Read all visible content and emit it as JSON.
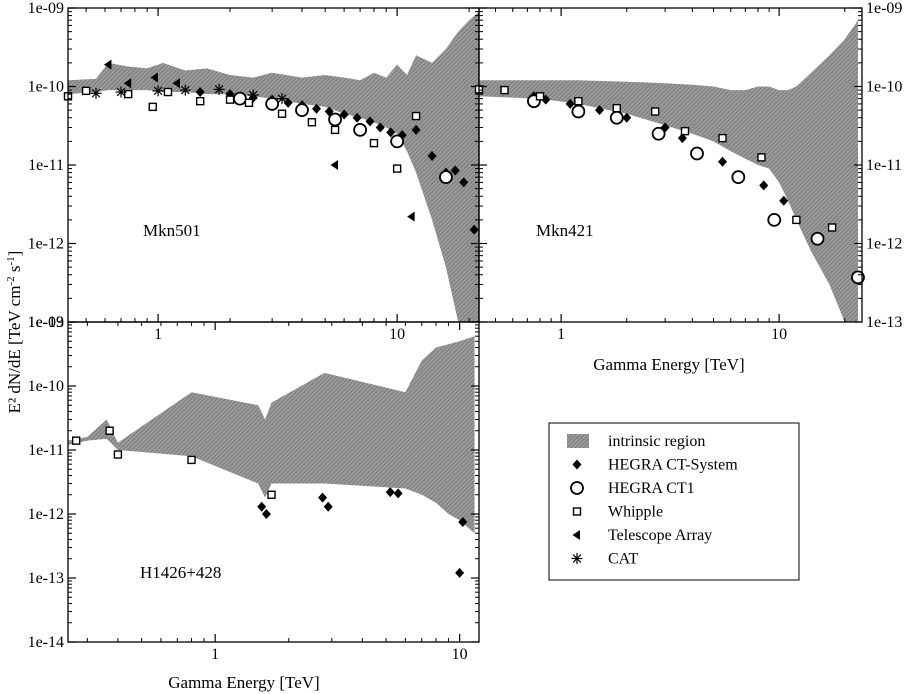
{
  "figure": {
    "ylabel": "E² dN/dE [TeV cm⁻² s⁻¹]",
    "ylabel_html": "E² dN/dE [TeV cm",
    "ylabel_parts": {
      "main": "E² dN/dE [TeV cm",
      "exp1": "-2",
      "mid": " s",
      "exp2": "-1",
      "end": "]"
    },
    "xlabel": "Gamma Energy [TeV]"
  },
  "colors": {
    "band": "#8c8c8c",
    "ink": "#000000"
  },
  "legend": {
    "placement": "lower-right",
    "items": [
      {
        "label": "intrinsic region",
        "marker": "band"
      },
      {
        "label": "HEGRA CT-System",
        "marker": "diamond"
      },
      {
        "label": "HEGRA CT1",
        "marker": "circle"
      },
      {
        "label": "Whipple",
        "marker": "square"
      },
      {
        "label": "Telescope Array",
        "marker": "triangle-left"
      },
      {
        "label": "CAT",
        "marker": "asterisk"
      }
    ]
  },
  "chart_data": [
    {
      "type": "scatter",
      "panel": "Mkn501",
      "label": "Mkn501",
      "xscale": "log",
      "yscale": "log",
      "xlim": [
        0.42,
        22
      ],
      "ylim": [
        1e-13,
        1e-09
      ],
      "xticks": [
        {
          "v": 1,
          "t": "1"
        },
        {
          "v": 10,
          "t": "10"
        }
      ],
      "yticks": [
        {
          "v": 1e-09,
          "t": "1e-09"
        },
        {
          "v": 1e-10,
          "t": "1e-10"
        },
        {
          "v": 1e-11,
          "t": "1e-11"
        },
        {
          "v": 1e-12,
          "t": "1e-12"
        },
        {
          "v": 1e-13,
          "t": "1e-13"
        }
      ],
      "band": {
        "x": [
          0.42,
          0.55,
          0.62,
          0.75,
          0.9,
          1.05,
          1.3,
          1.6,
          2.0,
          2.5,
          3.0,
          4.0,
          5.0,
          6.0,
          7.0,
          8.0,
          9.0,
          10.0,
          11.0,
          12.0,
          14.0,
          16.0,
          18.0,
          20.0,
          22.0
        ],
        "upper": [
          1.2e-10,
          1.25e-10,
          2e-10,
          1.8e-10,
          1.7e-10,
          2e-10,
          1.6e-10,
          1.7e-10,
          1.4e-10,
          1.3e-10,
          1.5e-10,
          1.3e-10,
          1.4e-10,
          1.3e-10,
          1.2e-10,
          1.5e-10,
          1.3e-10,
          1.9e-10,
          1.4e-10,
          2.5e-10,
          2e-10,
          3e-10,
          5e-10,
          7e-10,
          9e-10
        ],
        "lower": [
          8e-11,
          8.5e-11,
          9e-11,
          9e-11,
          9e-11,
          8.5e-11,
          8.5e-11,
          8e-11,
          8e-11,
          7.5e-11,
          7e-11,
          6e-11,
          5.5e-11,
          4.5e-11,
          4e-11,
          3.5e-11,
          3e-11,
          2.5e-11,
          1.5e-11,
          8e-12,
          2e-12,
          5e-13,
          1e-13,
          1e-13,
          1e-13
        ]
      },
      "series": [
        {
          "name": "HEGRA CT-System",
          "marker": "diamond",
          "points": [
            {
              "x": 1.5,
              "y": 8.5e-11
            },
            {
              "x": 2.0,
              "y": 8e-11
            },
            {
              "x": 2.5,
              "y": 7.2e-11
            },
            {
              "x": 3.0,
              "y": 6.8e-11
            },
            {
              "x": 3.5,
              "y": 6.2e-11
            },
            {
              "x": 4.0,
              "y": 5.8e-11
            },
            {
              "x": 4.6,
              "y": 5.2e-11
            },
            {
              "x": 5.2,
              "y": 4.8e-11
            },
            {
              "x": 6.0,
              "y": 4.4e-11
            },
            {
              "x": 6.8,
              "y": 4e-11
            },
            {
              "x": 7.7,
              "y": 3.6e-11
            },
            {
              "x": 8.5,
              "y": 3e-11
            },
            {
              "x": 9.4,
              "y": 2.6e-11
            },
            {
              "x": 10.5,
              "y": 2.4e-11
            },
            {
              "x": 12.0,
              "y": 2.8e-11
            },
            {
              "x": 14.0,
              "y": 1.3e-11
            },
            {
              "x": 16.0,
              "y": 8e-12
            },
            {
              "x": 17.5,
              "y": 8.5e-12
            },
            {
              "x": 19.0,
              "y": 6e-12
            },
            {
              "x": 21.0,
              "y": 1.5e-12
            }
          ]
        },
        {
          "name": "HEGRA CT1",
          "marker": "circle",
          "points": [
            {
              "x": 2.2,
              "y": 7e-11
            },
            {
              "x": 3.0,
              "y": 6e-11
            },
            {
              "x": 4.0,
              "y": 5e-11
            },
            {
              "x": 5.5,
              "y": 3.8e-11
            },
            {
              "x": 7.0,
              "y": 2.8e-11
            },
            {
              "x": 10.0,
              "y": 2e-11
            },
            {
              "x": 16.0,
              "y": 7e-12
            }
          ]
        },
        {
          "name": "Whipple",
          "marker": "square",
          "points": [
            {
              "x": 0.42,
              "y": 7.5e-11
            },
            {
              "x": 0.5,
              "y": 8.8e-11
            },
            {
              "x": 0.75,
              "y": 8e-11
            },
            {
              "x": 0.95,
              "y": 5.5e-11
            },
            {
              "x": 1.1,
              "y": 8.5e-11
            },
            {
              "x": 1.5,
              "y": 6.5e-11
            },
            {
              "x": 2.0,
              "y": 6.8e-11
            },
            {
              "x": 2.4,
              "y": 6.2e-11
            },
            {
              "x": 3.3,
              "y": 4.5e-11
            },
            {
              "x": 4.4,
              "y": 3.5e-11
            },
            {
              "x": 5.5,
              "y": 2.8e-11
            },
            {
              "x": 8.0,
              "y": 1.9e-11
            },
            {
              "x": 10.0,
              "y": 9e-12
            },
            {
              "x": 12.0,
              "y": 4.2e-11
            }
          ]
        },
        {
          "name": "Telescope Array",
          "marker": "triangle-left",
          "points": [
            {
              "x": 0.62,
              "y": 1.9e-10
            },
            {
              "x": 0.75,
              "y": 1.1e-10
            },
            {
              "x": 0.97,
              "y": 1.3e-10
            },
            {
              "x": 1.2,
              "y": 1.1e-10
            },
            {
              "x": 5.5,
              "y": 1e-11
            },
            {
              "x": 11.5,
              "y": 2.2e-12
            }
          ]
        },
        {
          "name": "CAT",
          "marker": "asterisk",
          "points": [
            {
              "x": 0.55,
              "y": 8.2e-11
            },
            {
              "x": 0.7,
              "y": 8.5e-11
            },
            {
              "x": 1.0,
              "y": 8.8e-11
            },
            {
              "x": 1.3,
              "y": 9e-11
            },
            {
              "x": 1.8,
              "y": 9.2e-11
            },
            {
              "x": 2.5,
              "y": 7.8e-11
            },
            {
              "x": 3.3,
              "y": 7e-11
            }
          ]
        }
      ]
    },
    {
      "type": "scatter",
      "panel": "Mkn421",
      "label": "Mkn421",
      "xscale": "log",
      "yscale": "log",
      "xlim": [
        0.42,
        24
      ],
      "ylim": [
        1e-13,
        1e-09
      ],
      "xticks": [
        {
          "v": 1,
          "t": "1"
        },
        {
          "v": 10,
          "t": "10"
        }
      ],
      "yticks": [
        {
          "v": 1e-09,
          "t": "1e-09"
        },
        {
          "v": 1e-10,
          "t": "1e-10"
        },
        {
          "v": 1e-11,
          "t": "1e-11"
        },
        {
          "v": 1e-12,
          "t": "1e-12"
        },
        {
          "v": 1e-13,
          "t": "1e-13"
        }
      ],
      "band": {
        "x": [
          0.42,
          0.8,
          1.2,
          2.0,
          3.0,
          4.0,
          5.0,
          6.0,
          7.0,
          8.0,
          9.0,
          10.0,
          11.0,
          12.0,
          14.0,
          17.0,
          20.0,
          23.0
        ],
        "upper": [
          1.2e-10,
          1.2e-10,
          1.2e-10,
          1.15e-10,
          1.1e-10,
          1.05e-10,
          1e-10,
          9e-11,
          9e-11,
          1e-10,
          1e-10,
          9e-11,
          9e-11,
          1e-10,
          1.5e-10,
          2.5e-10,
          4e-10,
          7e-10
        ],
        "lower": [
          7.5e-11,
          7e-11,
          6e-11,
          4.5e-11,
          3.2e-11,
          2.5e-11,
          2e-11,
          1.5e-11,
          1.2e-11,
          1e-11,
          9e-12,
          6e-12,
          3.5e-12,
          2e-12,
          8e-13,
          3e-13,
          1e-13,
          1e-13
        ]
      },
      "series": [
        {
          "name": "HEGRA CT-System",
          "marker": "diamond",
          "points": [
            {
              "x": 0.75,
              "y": 7.5e-11
            },
            {
              "x": 0.85,
              "y": 6.8e-11
            },
            {
              "x": 1.1,
              "y": 6e-11
            },
            {
              "x": 1.5,
              "y": 5e-11
            },
            {
              "x": 2.0,
              "y": 4e-11
            },
            {
              "x": 3.0,
              "y": 3e-11
            },
            {
              "x": 3.6,
              "y": 2.2e-11
            },
            {
              "x": 5.5,
              "y": 1.1e-11
            },
            {
              "x": 8.5,
              "y": 5.5e-12
            },
            {
              "x": 10.5,
              "y": 3.5e-12
            }
          ]
        },
        {
          "name": "HEGRA CT1",
          "marker": "circle",
          "points": [
            {
              "x": 0.75,
              "y": 6.5e-11
            },
            {
              "x": 1.2,
              "y": 4.8e-11
            },
            {
              "x": 1.8,
              "y": 4e-11
            },
            {
              "x": 2.8,
              "y": 2.5e-11
            },
            {
              "x": 4.2,
              "y": 1.4e-11
            },
            {
              "x": 6.5,
              "y": 7e-12
            },
            {
              "x": 9.5,
              "y": 2e-12
            },
            {
              "x": 15.0,
              "y": 1.15e-12
            },
            {
              "x": 23.0,
              "y": 3.7e-13
            }
          ]
        },
        {
          "name": "Whipple",
          "marker": "square",
          "points": [
            {
              "x": 0.42,
              "y": 9.2e-11
            },
            {
              "x": 0.55,
              "y": 9e-11
            },
            {
              "x": 0.8,
              "y": 7.5e-11
            },
            {
              "x": 1.2,
              "y": 6.5e-11
            },
            {
              "x": 1.8,
              "y": 5.3e-11
            },
            {
              "x": 2.7,
              "y": 4.8e-11
            },
            {
              "x": 3.7,
              "y": 2.7e-11
            },
            {
              "x": 5.5,
              "y": 2.2e-11
            },
            {
              "x": 8.3,
              "y": 1.25e-11
            },
            {
              "x": 12.0,
              "y": 2e-12
            },
            {
              "x": 17.5,
              "y": 1.6e-12
            }
          ]
        }
      ]
    },
    {
      "type": "scatter",
      "panel": "H1426+428",
      "label": "H1426+428",
      "xscale": "log",
      "yscale": "log",
      "xlim": [
        0.25,
        12
      ],
      "ylim": [
        1e-14,
        1e-09
      ],
      "xticks": [
        {
          "v": 1,
          "t": "1"
        },
        {
          "v": 10,
          "t": "10"
        }
      ],
      "yticks": [
        {
          "v": 1e-09,
          "t": "1e-09"
        },
        {
          "v": 1e-10,
          "t": "1e-10"
        },
        {
          "v": 1e-11,
          "t": "1e-11"
        },
        {
          "v": 1e-12,
          "t": "1e-12"
        },
        {
          "v": 1e-13,
          "t": "1e-13"
        },
        {
          "v": 1e-14,
          "t": "1e-14"
        }
      ],
      "band": {
        "x": [
          0.25,
          0.3,
          0.36,
          0.4,
          0.8,
          1.5,
          1.6,
          1.7,
          2.8,
          6.0,
          7.0,
          8.0,
          9.0,
          10.0,
          11.5
        ],
        "upper": [
          1.4e-11,
          1.6e-11,
          3e-11,
          1.3e-11,
          8e-11,
          5e-11,
          3e-11,
          5.5e-11,
          1.6e-10,
          8e-11,
          2.5e-10,
          4e-10,
          4.5e-10,
          5e-10,
          6e-10
        ],
        "lower": [
          1.2e-11,
          1.4e-11,
          1.5e-11,
          1e-11,
          8e-12,
          3e-12,
          1.8e-12,
          3e-12,
          3e-12,
          2.5e-12,
          2e-12,
          1.5e-12,
          1e-12,
          8e-13,
          5e-13
        ]
      },
      "series": [
        {
          "name": "HEGRA CT-System",
          "marker": "diamond",
          "points": [
            {
              "x": 1.55,
              "y": 1.3e-12
            },
            {
              "x": 1.62,
              "y": 1e-12
            },
            {
              "x": 2.75,
              "y": 1.8e-12
            },
            {
              "x": 2.9,
              "y": 1.3e-12
            },
            {
              "x": 5.2,
              "y": 2.2e-12
            },
            {
              "x": 5.6,
              "y": 2.1e-12
            },
            {
              "x": 10.0,
              "y": 1.2e-13
            },
            {
              "x": 10.3,
              "y": 7.5e-13
            }
          ]
        },
        {
          "name": "Whipple",
          "marker": "square",
          "points": [
            {
              "x": 0.27,
              "y": 1.4e-11
            },
            {
              "x": 0.37,
              "y": 2e-11
            },
            {
              "x": 0.4,
              "y": 8.5e-12
            },
            {
              "x": 0.8,
              "y": 7e-12
            },
            {
              "x": 1.7,
              "y": 2e-12
            }
          ]
        }
      ]
    }
  ]
}
